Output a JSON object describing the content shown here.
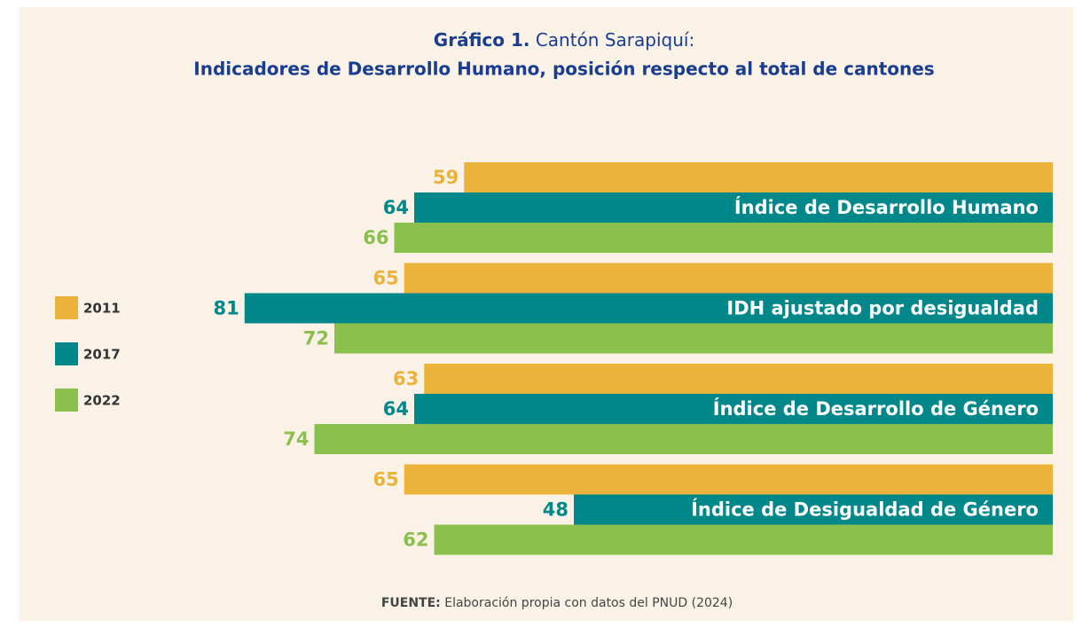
{
  "chart_data": {
    "type": "bar",
    "orientation": "horizontal",
    "x_reversed": true,
    "title_label": "Gráfico 1.",
    "title": "Cantón Sarapiquí:",
    "subtitle": "Indicadores de Desarrollo Humano, posición respecto al total de cantones",
    "categories": [
      "Índice de Desarrollo Humano",
      "IDH ajustado por desigualdad",
      "Índice de Desarrollo de Género",
      "Índice de Desigualdad de Género"
    ],
    "series": [
      {
        "name": "2011",
        "color": "#ecb33a",
        "values": [
          59,
          65,
          63,
          65
        ]
      },
      {
        "name": "2017",
        "color": "#00878a",
        "values": [
          64,
          81,
          64,
          48
        ]
      },
      {
        "name": "2022",
        "color": "#8cc04e",
        "values": [
          66,
          72,
          74,
          62
        ]
      }
    ],
    "xlim": [
      0,
      100
    ],
    "legend": "left",
    "source_label": "FUENTE:",
    "source": "Elaboración propia con datos del PNUD (2024)"
  }
}
